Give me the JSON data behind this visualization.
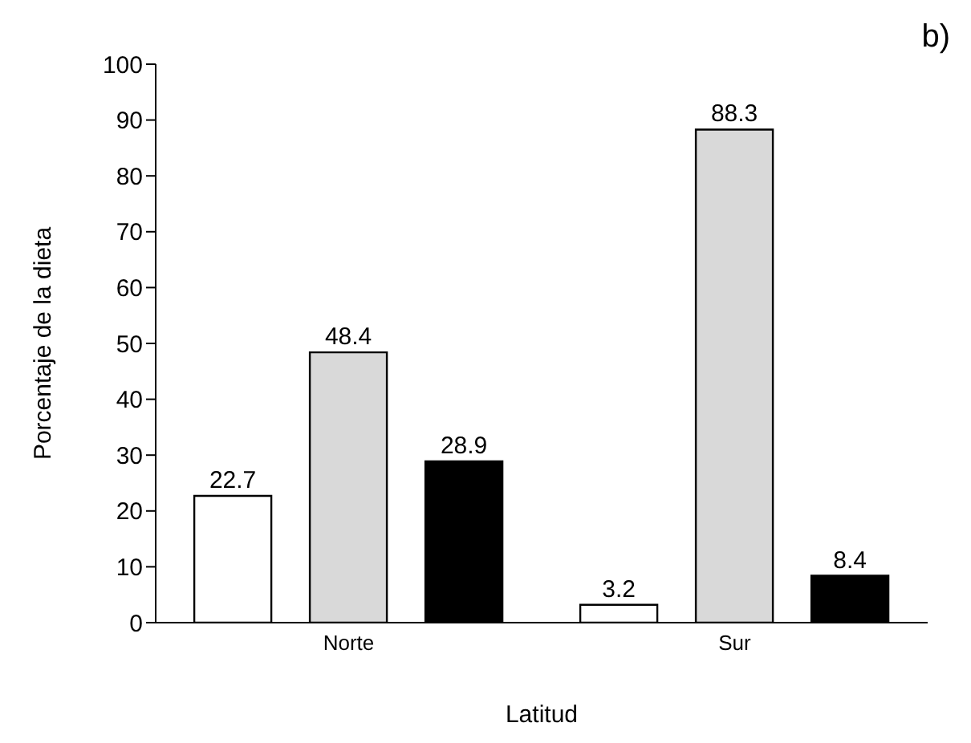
{
  "chart_data": {
    "type": "bar",
    "xlabel": "Latitud",
    "ylabel": "Porcentaje de la dieta",
    "annotations": [
      "b)"
    ],
    "categories": [
      "Norte",
      "Sur"
    ],
    "series": [
      {
        "color": "#ffffff",
        "values": [
          22.7,
          3.2
        ]
      },
      {
        "color": "#d9d9d9",
        "values": [
          48.4,
          88.3
        ]
      },
      {
        "color": "#000000",
        "values": [
          28.9,
          8.4
        ]
      }
    ],
    "ylim": [
      0,
      100
    ],
    "yticks": [
      0,
      10,
      20,
      30,
      40,
      50,
      60,
      70,
      80,
      90,
      100
    ],
    "grid": false,
    "legend": false,
    "data_labels": true
  }
}
